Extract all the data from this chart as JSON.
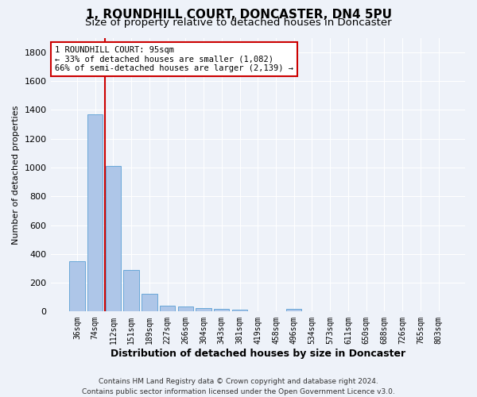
{
  "title": "1, ROUNDHILL COURT, DONCASTER, DN4 5PU",
  "subtitle": "Size of property relative to detached houses in Doncaster",
  "xlabel": "Distribution of detached houses by size in Doncaster",
  "ylabel": "Number of detached properties",
  "bin_labels": [
    "36sqm",
    "74sqm",
    "112sqm",
    "151sqm",
    "189sqm",
    "227sqm",
    "266sqm",
    "304sqm",
    "343sqm",
    "381sqm",
    "419sqm",
    "458sqm",
    "496sqm",
    "534sqm",
    "573sqm",
    "611sqm",
    "650sqm",
    "688sqm",
    "726sqm",
    "765sqm",
    "803sqm"
  ],
  "bar_values": [
    350,
    1370,
    1010,
    290,
    125,
    40,
    35,
    25,
    20,
    15,
    0,
    0,
    20,
    0,
    0,
    0,
    0,
    0,
    0,
    0,
    0
  ],
  "bar_color": "#aec6e8",
  "bar_edge_color": "#5a9fd4",
  "vline_x": 1.53,
  "vline_color": "#cc0000",
  "ylim": [
    0,
    1900
  ],
  "yticks": [
    0,
    200,
    400,
    600,
    800,
    1000,
    1200,
    1400,
    1600,
    1800
  ],
  "annotation_line1": "1 ROUNDHILL COURT: 95sqm",
  "annotation_line2": "← 33% of detached houses are smaller (1,082)",
  "annotation_line3": "66% of semi-detached houses are larger (2,139) →",
  "annotation_box_color": "#cc0000",
  "footer_line1": "Contains HM Land Registry data © Crown copyright and database right 2024.",
  "footer_line2": "Contains public sector information licensed under the Open Government Licence v3.0.",
  "background_color": "#eef2f9",
  "grid_color": "#ffffff",
  "title_fontsize": 11,
  "subtitle_fontsize": 9.5,
  "ylabel_fontsize": 8,
  "xlabel_fontsize": 9,
  "tick_fontsize": 7,
  "annot_fontsize": 7.5,
  "footer_fontsize": 6.5
}
